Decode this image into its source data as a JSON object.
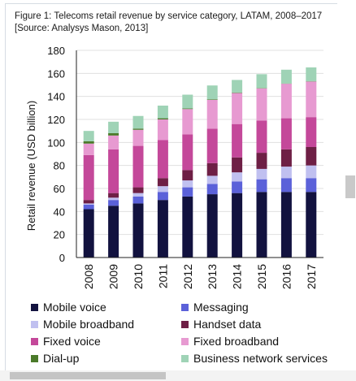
{
  "caption": {
    "line1": "Figure 1: Telecoms retail revenue by service category, LATAM, 2008–2017",
    "line2": "[Source: Analysys Mason, 2013]"
  },
  "chart_data": {
    "type": "bar",
    "stacked": true,
    "title": "",
    "ylabel": "Retail revenue (USD billion)",
    "xlabel": "",
    "ylim": [
      0,
      180
    ],
    "yticks": [
      0,
      20,
      40,
      60,
      80,
      100,
      120,
      140,
      160,
      180
    ],
    "grid": true,
    "legend_position": "bottom",
    "categories": [
      "2008",
      "2009",
      "2010",
      "2011",
      "2012",
      "2013",
      "2014",
      "2015",
      "2016",
      "2017"
    ],
    "series": [
      {
        "name": "Mobile voice",
        "color": "#12123f",
        "values": [
          42,
          45,
          47,
          50,
          53,
          55,
          56,
          57,
          57,
          57
        ]
      },
      {
        "name": "Messaging",
        "color": "#5b61d9",
        "values": [
          4,
          5,
          6,
          7,
          8,
          9,
          10,
          11,
          12,
          12
        ]
      },
      {
        "name": "Mobile broadband",
        "color": "#c0c0f0",
        "values": [
          1,
          2,
          3,
          5,
          6,
          7,
          8,
          9,
          10,
          11
        ]
      },
      {
        "name": "Handset data",
        "color": "#6e1f45",
        "values": [
          3,
          4,
          5,
          7,
          9,
          11,
          13,
          14,
          15,
          16
        ]
      },
      {
        "name": "Fixed voice",
        "color": "#c4489a",
        "values": [
          39,
          38,
          36,
          33,
          31,
          30,
          29,
          28,
          27,
          26
        ]
      },
      {
        "name": "Fixed broadband",
        "color": "#e79ad1",
        "values": [
          10,
          12,
          14,
          18,
          22,
          25,
          27,
          28,
          30,
          31
        ]
      },
      {
        "name": "Dial-up",
        "color": "#4b7a2a",
        "values": [
          2,
          2,
          1,
          1,
          0.5,
          0.5,
          0.3,
          0.3,
          0.2,
          0.2
        ]
      },
      {
        "name": "Business network services",
        "color": "#9fd3b6",
        "values": [
          9,
          10,
          11,
          11,
          12,
          12,
          11,
          12,
          12,
          12
        ]
      }
    ]
  }
}
